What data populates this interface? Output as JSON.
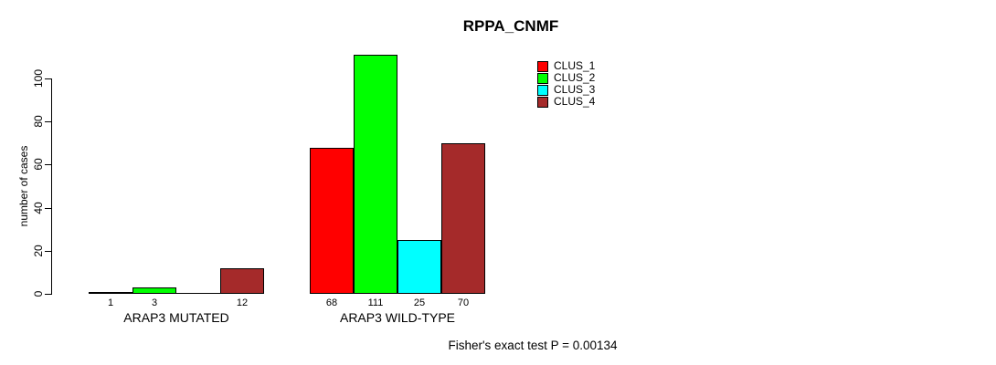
{
  "chart_data": {
    "type": "bar",
    "title": "RPPA_CNMF",
    "xlabel": "",
    "ylabel": "number of cases",
    "ylim": [
      0,
      111
    ],
    "yticks": [
      0,
      20,
      40,
      60,
      80,
      100
    ],
    "grid": false,
    "legend_position": "top-right",
    "categories": [
      "ARAP3 MUTATED",
      "ARAP3 WILD-TYPE"
    ],
    "series": [
      {
        "name": "CLUS_1",
        "color": "#FF0000",
        "values": [
          1,
          68
        ]
      },
      {
        "name": "CLUS_2",
        "color": "#00FF00",
        "values": [
          3,
          111
        ]
      },
      {
        "name": "CLUS_3",
        "color": "#00FFFF",
        "values": [
          0,
          25
        ]
      },
      {
        "name": "CLUS_4",
        "color": "#A52A2A",
        "values": [
          12,
          70
        ]
      }
    ],
    "bar_value_labels": [
      [
        "1",
        "3",
        "",
        "12"
      ],
      [
        "68",
        "111",
        "25",
        "70"
      ]
    ],
    "annotation": "Fisher's exact test P = 0.00134"
  }
}
